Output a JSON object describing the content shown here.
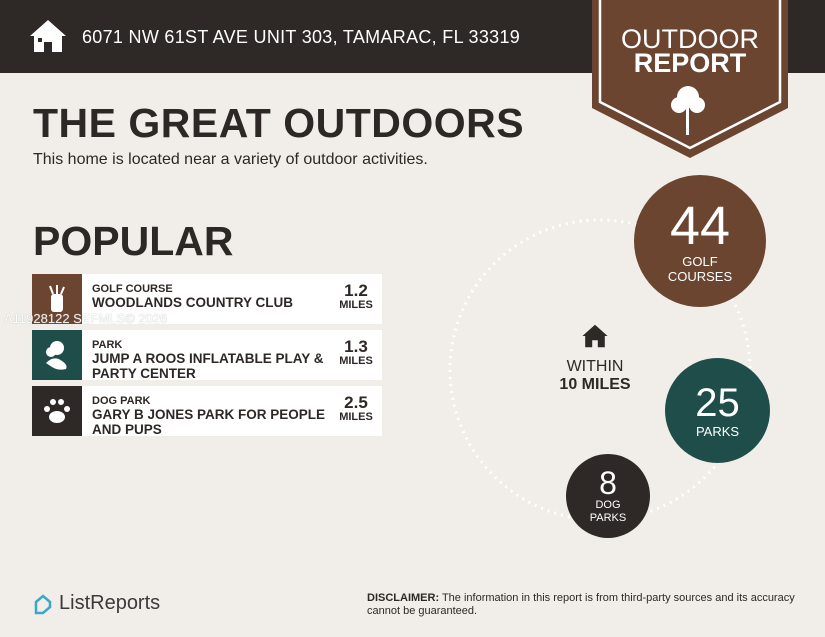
{
  "header": {
    "address": "6071 NW 61ST AVE UNIT 303, TAMARAC, FL 33319",
    "icon": "house-icon"
  },
  "banner": {
    "line1": "OUTDOOR",
    "line2": "REPORT",
    "icon": "tree-icon"
  },
  "title": "THE GREAT OUTDOORS",
  "subtitle": "This home is located near a variety of outdoor activities.",
  "popular": {
    "heading": "POPULAR",
    "items": [
      {
        "category": "GOLF COURSE",
        "name": "WOODLANDS COUNTRY CLUB",
        "distance": "1.2",
        "unit": "MILES",
        "icon": "golf-bag-icon",
        "color": "#6b4530"
      },
      {
        "category": "PARK",
        "name": "JUMP A ROOS INFLATABLE PLAY & PARTY CENTER",
        "distance": "1.3",
        "unit": "MILES",
        "icon": "park-icon",
        "color": "#1f4e4a"
      },
      {
        "category": "DOG PARK",
        "name": "GARY B JONES PARK FOR PEOPLE AND PUPS",
        "distance": "2.5",
        "unit": "MILES",
        "icon": "paw-icon",
        "color": "#2e2826"
      }
    ]
  },
  "watermark": "A11928122 SEFMLS© 2026",
  "within": {
    "line1": "WITHIN",
    "line2": "10 MILES"
  },
  "stats": [
    {
      "count": "44",
      "label": "GOLF COURSES",
      "color": "#6b4530"
    },
    {
      "count": "25",
      "label": "PARKS",
      "color": "#1f4e4a"
    },
    {
      "count": "8",
      "label": "DOG PARKS",
      "color": "#2e2826"
    }
  ],
  "footer": {
    "logo": "ListReports",
    "disclaimer_label": "DISCLAIMER:",
    "disclaimer_text": " The information in this report is from third-party sources and its accuracy cannot be guaranteed."
  }
}
